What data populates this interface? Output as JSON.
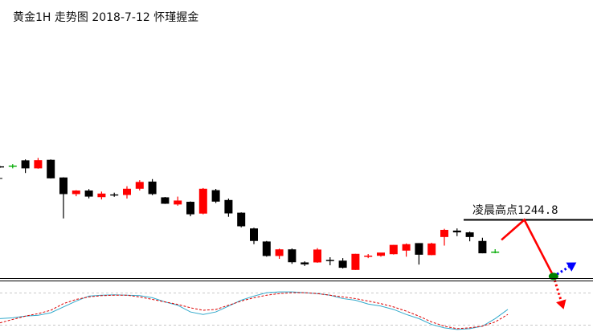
{
  "chart_data": {
    "type": "candlestick",
    "title": "黄金1H 走势图 2018-7-12 怀瑾握金",
    "annotation": "凌晨高点1244.8",
    "level": 1244.8,
    "grid": false,
    "colors": {
      "bull": "#ff0000",
      "bear": "#000000",
      "doji": "#00aa00",
      "forecast_down": "#ff0000",
      "forecast_up": "#0000ff",
      "pivot": "#008000"
    },
    "candles": [
      {
        "o": 1259.6,
        "h": 1259.85,
        "l": 1259.35,
        "c": 1259.7
      },
      {
        "o": 1259.8,
        "h": 1260.4,
        "l": 1259.2,
        "c": 1259.8
      },
      {
        "o": 1261.45,
        "h": 1261.7,
        "l": 1257.9,
        "c": 1259.2
      },
      {
        "o": 1259.2,
        "h": 1262.1,
        "l": 1259.1,
        "c": 1261.5
      },
      {
        "o": 1261.6,
        "h": 1261.7,
        "l": 1256.35,
        "c": 1256.4
      },
      {
        "o": 1256.65,
        "h": 1256.7,
        "l": 1245.2,
        "c": 1252.0
      },
      {
        "o": 1252.0,
        "h": 1253.1,
        "l": 1251.4,
        "c": 1253.0
      },
      {
        "o": 1253.0,
        "h": 1253.4,
        "l": 1250.8,
        "c": 1251.3
      },
      {
        "o": 1251.15,
        "h": 1252.7,
        "l": 1250.5,
        "c": 1252.15
      },
      {
        "o": 1251.75,
        "h": 1252.4,
        "l": 1251.25,
        "c": 1251.75
      },
      {
        "o": 1251.75,
        "h": 1254.2,
        "l": 1250.75,
        "c": 1253.5
      },
      {
        "o": 1253.5,
        "h": 1255.9,
        "l": 1253.0,
        "c": 1255.4
      },
      {
        "o": 1255.5,
        "h": 1256.2,
        "l": 1251.7,
        "c": 1252.0
      },
      {
        "o": 1251.1,
        "h": 1251.2,
        "l": 1249.25,
        "c": 1249.3
      },
      {
        "o": 1249.1,
        "h": 1251.3,
        "l": 1248.75,
        "c": 1250.2
      },
      {
        "o": 1249.85,
        "h": 1249.95,
        "l": 1245.8,
        "c": 1246.35
      },
      {
        "o": 1246.55,
        "h": 1253.7,
        "l": 1246.35,
        "c": 1253.5
      },
      {
        "o": 1253.1,
        "h": 1253.45,
        "l": 1249.5,
        "c": 1249.9
      },
      {
        "o": 1250.35,
        "h": 1250.75,
        "l": 1245.65,
        "c": 1246.6
      },
      {
        "o": 1246.8,
        "h": 1246.9,
        "l": 1242.7,
        "c": 1243.0
      },
      {
        "o": 1242.4,
        "h": 1242.6,
        "l": 1238.0,
        "c": 1238.9
      },
      {
        "o": 1238.75,
        "h": 1238.9,
        "l": 1234.5,
        "c": 1234.7
      },
      {
        "o": 1234.7,
        "h": 1236.75,
        "l": 1233.9,
        "c": 1236.55
      },
      {
        "o": 1236.55,
        "h": 1236.8,
        "l": 1232.5,
        "c": 1232.95
      },
      {
        "o": 1232.9,
        "h": 1233.2,
        "l": 1231.9,
        "c": 1232.35
      },
      {
        "o": 1232.9,
        "h": 1236.9,
        "l": 1232.8,
        "c": 1236.5
      },
      {
        "o": 1233.6,
        "h": 1234.35,
        "l": 1232.1,
        "c": 1233.35
      },
      {
        "o": 1233.4,
        "h": 1234.1,
        "l": 1231.2,
        "c": 1231.4
      },
      {
        "o": 1230.8,
        "h": 1235.3,
        "l": 1230.8,
        "c": 1235.3
      },
      {
        "o": 1234.55,
        "h": 1235.25,
        "l": 1234.1,
        "c": 1234.8
      },
      {
        "o": 1234.75,
        "h": 1235.6,
        "l": 1234.5,
        "c": 1235.65
      },
      {
        "o": 1235.2,
        "h": 1237.8,
        "l": 1235.1,
        "c": 1237.8
      },
      {
        "o": 1236.2,
        "h": 1238.2,
        "l": 1234.5,
        "c": 1238.0
      },
      {
        "o": 1238.3,
        "h": 1238.3,
        "l": 1232.3,
        "c": 1235.05
      },
      {
        "o": 1234.95,
        "h": 1238.4,
        "l": 1234.9,
        "c": 1238.2
      },
      {
        "o": 1240.0,
        "h": 1242.3,
        "l": 1237.6,
        "c": 1242.0
      },
      {
        "o": 1241.8,
        "h": 1242.4,
        "l": 1240.25,
        "c": 1241.3
      },
      {
        "o": 1241.3,
        "h": 1241.5,
        "l": 1238.8,
        "c": 1240.0
      },
      {
        "o": 1238.9,
        "h": 1239.8,
        "l": 1235.45,
        "c": 1235.45
      },
      {
        "o": 1235.75,
        "h": 1236.6,
        "l": 1235.45,
        "c": 1235.75
      }
    ],
    "forecast": {
      "path": [
        {
          "bar": 39.5,
          "price": 1239.2
        },
        {
          "bar": 41.3,
          "price": 1244.8
        },
        {
          "bar": 43.6,
          "price": 1229.0
        }
      ],
      "pivot": {
        "bar": 43.6,
        "price": 1229.0
      },
      "down_target": {
        "bar": 44.4,
        "price": 1219.8
      },
      "up_target": {
        "bar": 45.4,
        "price": 1232.9
      }
    },
    "oscillator": {
      "series": [
        {
          "style": "solid",
          "color": "#33aacc",
          "values": [
            30,
            32,
            36,
            38,
            44,
            58,
            72,
            84,
            86,
            87,
            86,
            85,
            80,
            70,
            62,
            46,
            40,
            46,
            60,
            74,
            84,
            92,
            94,
            94,
            92,
            90,
            86,
            78,
            74,
            65,
            60,
            52,
            40,
            30,
            16,
            8,
            4,
            6,
            12,
            30,
            52
          ]
        },
        {
          "style": "dashed",
          "color": "#dd0000",
          "values": [
            20,
            28,
            36,
            42,
            50,
            66,
            76,
            82,
            85,
            86,
            86,
            82,
            76,
            70,
            64,
            56,
            50,
            52,
            62,
            72,
            80,
            86,
            90,
            92,
            92,
            90,
            86,
            82,
            78,
            72,
            66,
            58,
            48,
            36,
            22,
            12,
            6,
            8,
            12,
            22,
            40
          ]
        }
      ]
    }
  }
}
